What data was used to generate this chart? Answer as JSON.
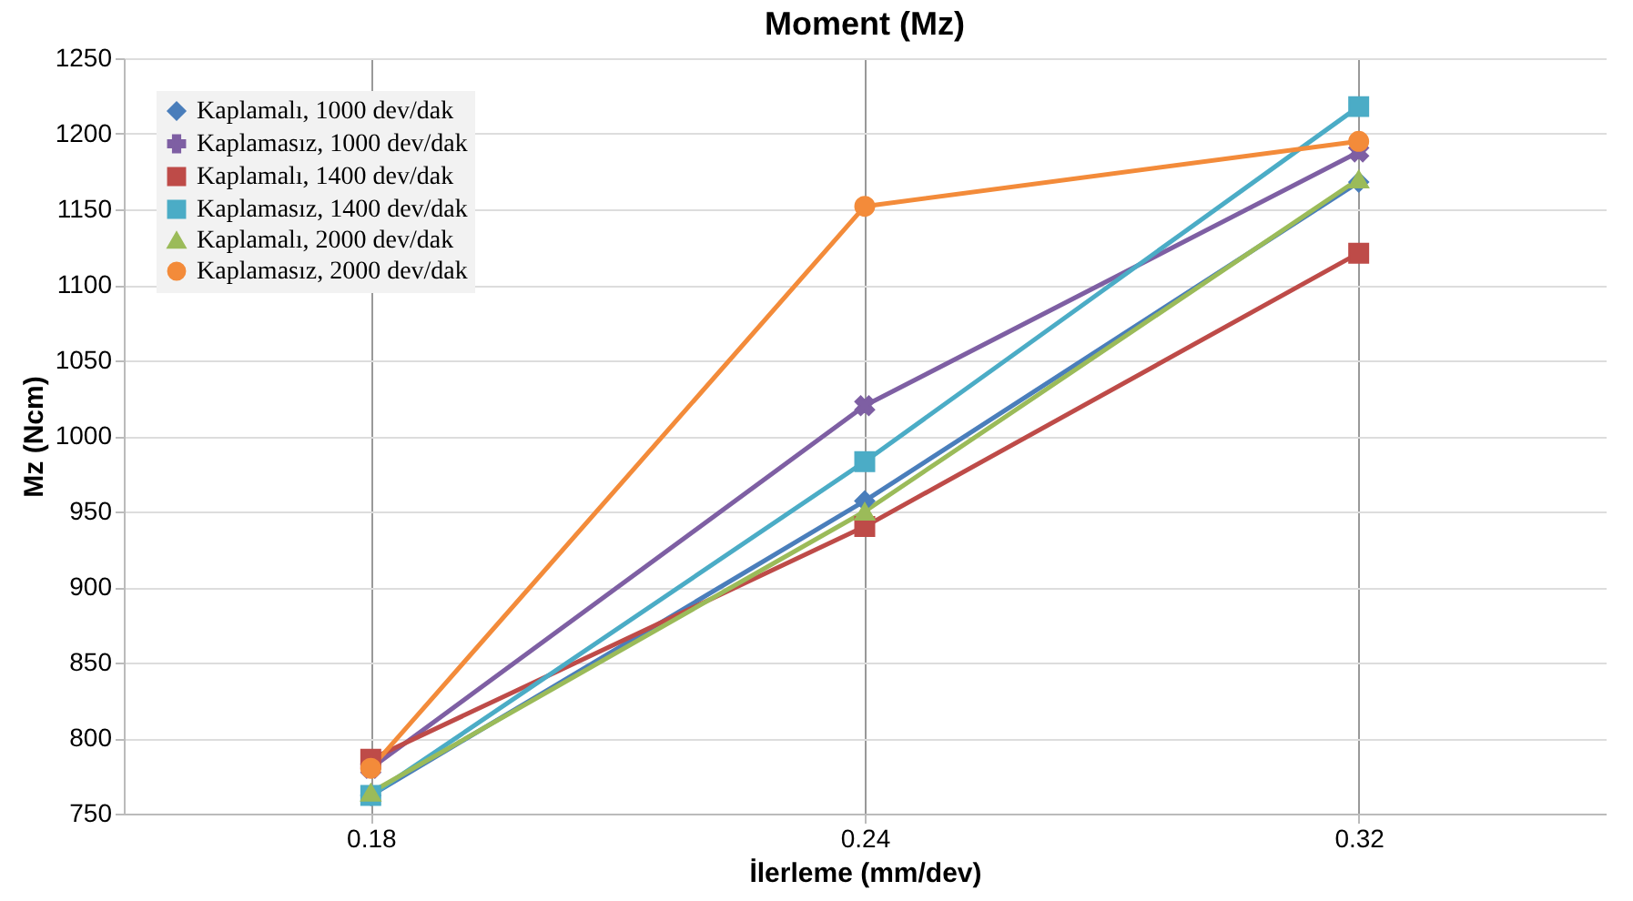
{
  "chart_data": {
    "type": "line",
    "title": "Moment (Mz)",
    "xlabel": "İlerleme (mm/dev)",
    "ylabel": "Mz (Ncm)",
    "categories": [
      "0.18",
      "0.24",
      "0.32"
    ],
    "series": [
      {
        "name": "Kaplamalı, 1000 dev/dak",
        "color": "#4a7ebb",
        "marker": "diamond",
        "values": [
          762,
          957,
          1168
        ]
      },
      {
        "name": "Kaplamasız, 1000 dev/dak",
        "color": "#7e5fa3",
        "marker": "cross",
        "values": [
          780,
          1020,
          1188
        ]
      },
      {
        "name": "Kaplamalı, 1400 dev/dak",
        "color": "#be4b48",
        "marker": "square",
        "values": [
          786,
          940,
          1121
        ]
      },
      {
        "name": "Kaplamasız, 1400 dev/dak",
        "color": "#4bacc6",
        "marker": "square",
        "values": [
          762,
          983,
          1218
        ]
      },
      {
        "name": "Kaplamalı, 2000 dev/dak",
        "color": "#9bbb59",
        "marker": "triangle",
        "values": [
          764,
          950,
          1170
        ]
      },
      {
        "name": "Kaplamasız, 2000 dev/dak",
        "color": "#f38b3a",
        "marker": "circle",
        "values": [
          780,
          1152,
          1195
        ]
      }
    ],
    "ylim": [
      750,
      1250
    ],
    "yticks": [
      750,
      800,
      850,
      900,
      950,
      1000,
      1050,
      1100,
      1150,
      1200,
      1250
    ],
    "grid": true,
    "legend": "top left",
    "line_style": "solid"
  }
}
